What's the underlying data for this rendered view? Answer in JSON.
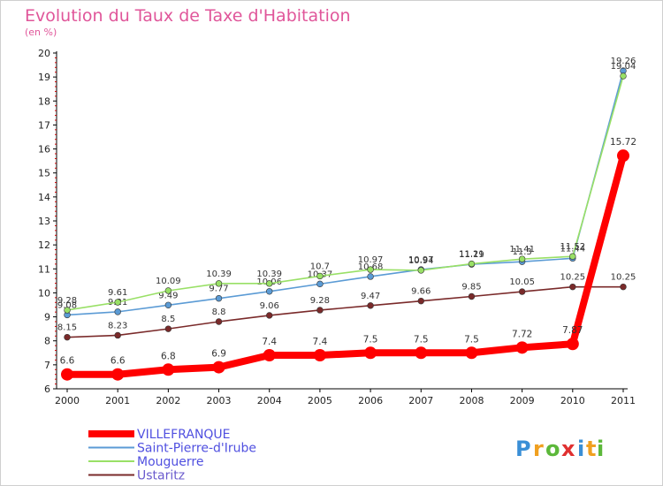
{
  "chart_data": {
    "type": "line",
    "title": "Evolution du Taux de Taxe d'Habitation",
    "subtitle": "(en %)",
    "xlabel": "",
    "ylabel": "",
    "ylim": [
      6,
      20
    ],
    "yticks": [
      "6",
      "7",
      "8",
      "9",
      "10",
      "11",
      "12",
      "13",
      "14",
      "15",
      "16",
      "17",
      "18",
      "19",
      "20"
    ],
    "x": [
      "2000",
      "2001",
      "2002",
      "2003",
      "2004",
      "2005",
      "2006",
      "2007",
      "2008",
      "2009",
      "2010",
      "2011"
    ],
    "grid": false,
    "legend": "bottom-left",
    "series": [
      {
        "name": "Saint-Pierre-d'Irube",
        "color": "#5b9bd5",
        "values": [
          9.08,
          9.21,
          9.49,
          9.77,
          10.06,
          10.37,
          10.68,
          10.97,
          11.19,
          11.3,
          11.44,
          19.26
        ],
        "labels": [
          "9.08",
          "9.21",
          "9.49",
          "9.77",
          "10.06",
          "10.37",
          "10.68",
          "10.97",
          "11.19",
          "11.3",
          "11.44",
          "19.26"
        ]
      },
      {
        "name": "Mouguerre",
        "color": "#99e066",
        "values": [
          9.28,
          9.61,
          10.09,
          10.39,
          10.39,
          10.7,
          10.97,
          10.94,
          11.21,
          11.41,
          11.52,
          19.04
        ],
        "labels": [
          "9.28",
          "9.61",
          "10.09",
          "10.39",
          "10.39",
          "10.7",
          "10.97",
          "10.94",
          "11.21",
          "11.41",
          "11.52",
          "19.04"
        ]
      },
      {
        "name": "Ustaritz",
        "color": "#7a2a2a",
        "values": [
          8.15,
          8.23,
          8.5,
          8.8,
          9.06,
          9.28,
          9.47,
          9.66,
          9.85,
          10.05,
          10.25,
          10.25
        ],
        "labels": [
          "8.15",
          "8.23",
          "8.5",
          "8.8",
          "9.06",
          "9.28",
          "9.47",
          "9.66",
          "9.85",
          "10.05",
          "10.25",
          "10.25"
        ]
      },
      {
        "name": "VILLEFRANQUE",
        "color": "#ff0000",
        "values": [
          6.6,
          6.6,
          6.8,
          6.9,
          7.4,
          7.4,
          7.5,
          7.5,
          7.5,
          7.72,
          7.87,
          15.72
        ],
        "labels": [
          "6.6",
          "6.6",
          "6.8",
          "6.9",
          "7.4",
          "7.4",
          "7.5",
          "7.5",
          "7.5",
          "7.72",
          "7.87",
          "15.72"
        ]
      }
    ],
    "legend_entries": [
      {
        "name": "VILLEFRANQUE",
        "color": "#ff0000"
      },
      {
        "name": "Saint-Pierre-d'Irube",
        "color": "#5b9bd5"
      },
      {
        "name": "Mouguerre",
        "color": "#99e066"
      },
      {
        "name": "Ustaritz",
        "color": "#7a2a2a"
      }
    ]
  },
  "logo": {
    "letters": [
      "P",
      "r",
      "o",
      "x",
      "i",
      "t",
      "i"
    ],
    "colors": [
      "#3a8fd6",
      "#f0a020",
      "#5cb83a",
      "#e03030",
      "#3a8fd6",
      "#f0a020",
      "#5cb83a"
    ]
  }
}
